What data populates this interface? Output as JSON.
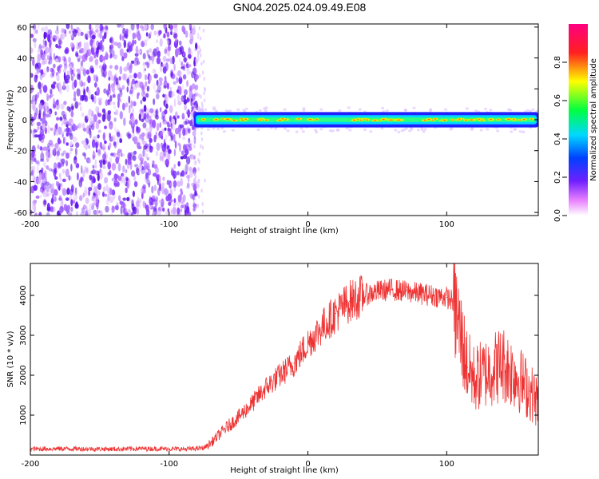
{
  "title": "GN04.2025.024.09.49.E08",
  "chart_data": [
    {
      "type": "heatmap",
      "xlabel": "Height of straight line (km)",
      "ylabel": "Frequency (Hz)",
      "xlim": [
        -200,
        166
      ],
      "ylim": [
        -62,
        62
      ],
      "xticks": [
        -200,
        -100,
        0,
        100
      ],
      "yticks": [
        -60,
        -40,
        -20,
        0,
        20,
        40,
        60
      ],
      "noise_region_x": [
        -200,
        -80
      ],
      "signal_band": {
        "x_start": -82,
        "x_end": 166,
        "center_hz": 0,
        "half_width_hz": 3
      },
      "colorbar": {
        "label": "Normalized spectral amplitude",
        "range": [
          0.0,
          1.0
        ],
        "ticks": [
          0.0,
          0.2,
          0.4,
          0.6,
          0.8
        ],
        "tick_labels": [
          "0.0",
          "0.2",
          "0.4",
          "0.6",
          "0.8"
        ],
        "colors": [
          "#ffffff",
          "#e060ff",
          "#5020ff",
          "#00d8ff",
          "#00ff40",
          "#ffff00",
          "#ff2020",
          "#ff0080"
        ]
      }
    },
    {
      "type": "line",
      "xlabel": "Height of straight line (km)",
      "ylabel": "SNR (10 * v/v)",
      "xlim": [
        -200,
        166
      ],
      "ylim": [
        0,
        4800
      ],
      "xticks": [
        -200,
        -100,
        0,
        100
      ],
      "yticks": [
        1000,
        2000,
        3000,
        4000
      ],
      "color": "#ee3333",
      "series": [
        {
          "x": [
            -200,
            -180,
            -160,
            -140,
            -120,
            -100,
            -85,
            -75,
            -70,
            -60,
            -50,
            -40,
            -30,
            -20,
            -10,
            0,
            10,
            20,
            30,
            40,
            50,
            60,
            70,
            80,
            90,
            100,
            105,
            110,
            115,
            120,
            130,
            140,
            150,
            160,
            166
          ],
          "y": [
            150,
            160,
            155,
            150,
            160,
            155,
            150,
            180,
            300,
            650,
            950,
            1300,
            1700,
            2000,
            2300,
            2800,
            3200,
            3550,
            3850,
            4000,
            4100,
            4150,
            4100,
            4050,
            4000,
            3950,
            3850,
            3000,
            2200,
            1900,
            2100,
            2300,
            2000,
            1600,
            1300
          ]
        }
      ]
    }
  ]
}
